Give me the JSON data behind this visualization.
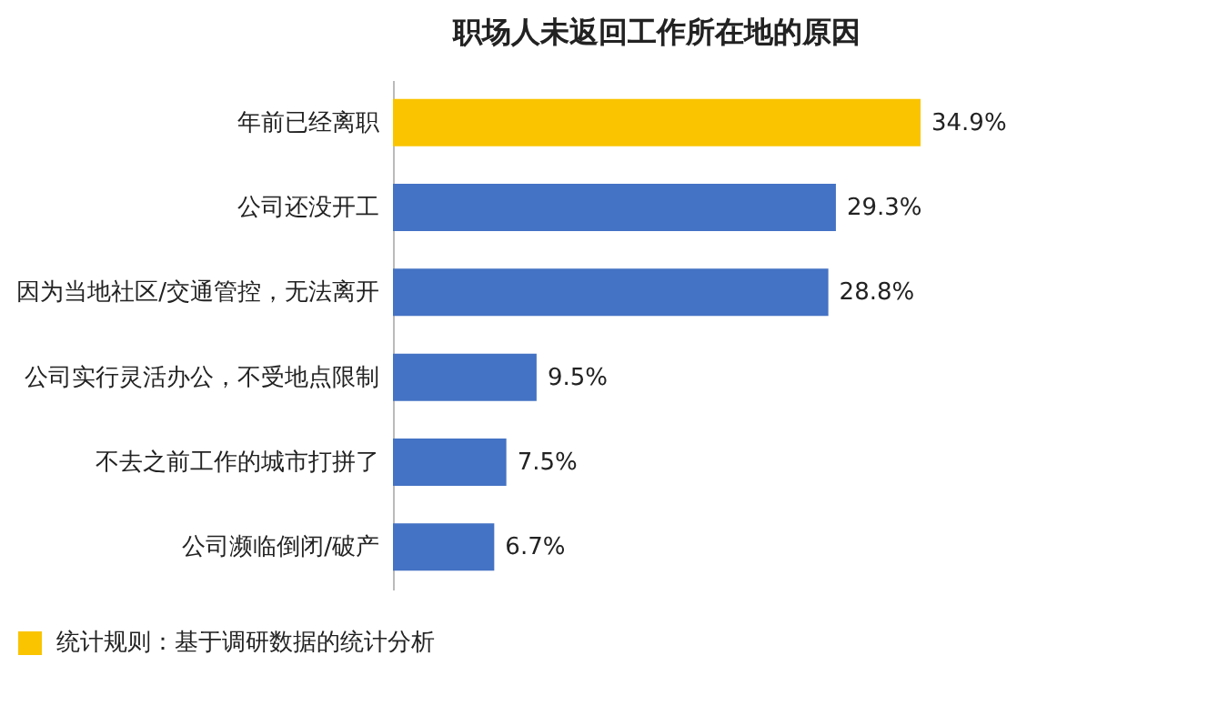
{
  "chart_data": {
    "type": "bar",
    "orientation": "horizontal",
    "title": "职场人未返回工作所在地的原因",
    "categories": [
      "年前已经离职",
      "公司还没开工",
      "因为当地社区/交通管控，无法离开",
      "公司实行灵活办公，不受地点限制",
      "不去之前工作的城市打拼了",
      "公司濒临倒闭/破产"
    ],
    "values": [
      34.9,
      29.3,
      28.8,
      9.5,
      7.5,
      6.7
    ],
    "colors": [
      "#fac400",
      "#4472c4",
      "#4472c4",
      "#4472c4",
      "#4472c4",
      "#4472c4"
    ],
    "value_labels": [
      "34.9%",
      "29.3%",
      "28.8%",
      "9.5%",
      "7.5%",
      "6.7%"
    ],
    "annotations": [
      "统计规则：基于调研数据的统计分析"
    ]
  }
}
